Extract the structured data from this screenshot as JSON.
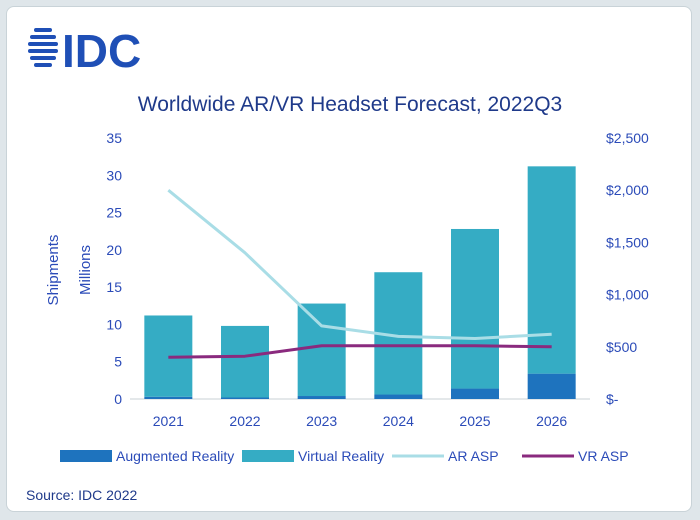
{
  "brand": {
    "name": "IDC",
    "color": "#1f4fb6"
  },
  "source": "Source: IDC 2022",
  "chart_data": {
    "type": "bar",
    "title": "Worldwide AR/VR Headset Forecast, 2022Q3",
    "ylabel": "Shipments",
    "ylabel2": "Millions",
    "categories": [
      "2021",
      "2022",
      "2023",
      "2024",
      "2025",
      "2026"
    ],
    "ylim": [
      0,
      35
    ],
    "y_ticks": [
      0,
      5,
      10,
      15,
      20,
      25,
      30,
      35
    ],
    "y_tick_labels": [
      "0",
      "5",
      "10",
      "15",
      "20",
      "25",
      "30",
      "35"
    ],
    "y2lim": [
      0,
      2500
    ],
    "y2_ticks": [
      0,
      500,
      1000,
      1500,
      2000,
      2500
    ],
    "y2_tick_labels": [
      "$-",
      "$500",
      "$1,000",
      "$1,500",
      "$2,000",
      "$2,500"
    ],
    "series": [
      {
        "name": "Augmented Reality",
        "kind": "bar",
        "stack": "shipments",
        "axis": "left",
        "color": "#1e73be",
        "values": [
          0.3,
          0.2,
          0.4,
          0.6,
          1.4,
          3.4
        ]
      },
      {
        "name": "Virtual Reality",
        "kind": "bar",
        "stack": "shipments",
        "axis": "left",
        "color": "#35acc4",
        "values": [
          10.9,
          9.6,
          12.4,
          16.4,
          21.4,
          27.8
        ]
      },
      {
        "name": "AR ASP",
        "kind": "line",
        "axis": "right",
        "color": "#a9dde6",
        "values": [
          2000,
          1400,
          700,
          600,
          580,
          620
        ]
      },
      {
        "name": "VR ASP",
        "kind": "line",
        "axis": "right",
        "color": "#8a2a7e",
        "values": [
          400,
          410,
          510,
          510,
          510,
          500
        ]
      }
    ],
    "legend_position": "bottom",
    "grid": false
  }
}
